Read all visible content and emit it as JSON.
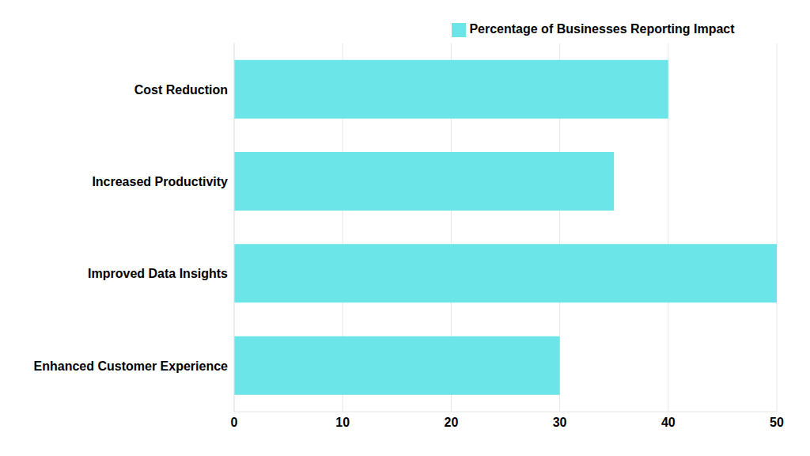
{
  "chart_data": {
    "type": "bar",
    "orientation": "horizontal",
    "categories": [
      "Cost Reduction",
      "Increased Productivity",
      "Improved Data Insights",
      "Enhanced Customer Experience"
    ],
    "series": [
      {
        "name": "Percentage of Businesses Reporting Impact",
        "color": "#6ce5e8",
        "values": [
          40,
          35,
          50,
          30
        ]
      }
    ],
    "xlim": [
      0,
      50
    ],
    "xticks": [
      0,
      10,
      20,
      30,
      40,
      50
    ],
    "grid": true,
    "legend": "top"
  }
}
